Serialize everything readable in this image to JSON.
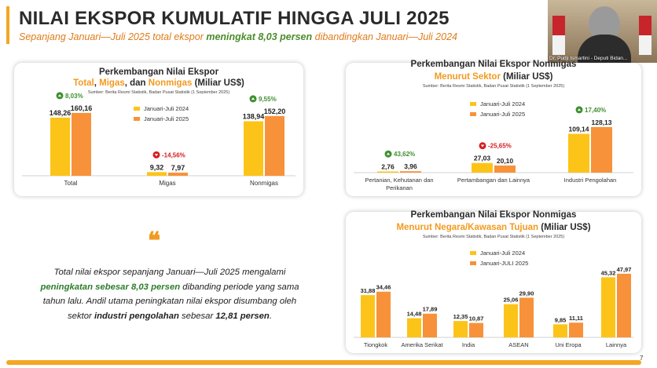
{
  "header": {
    "title": "NILAI EKSPOR KUMULATIF HINGGA JULI 2025",
    "subtitle_pre": "Sepanjang Januari—Juli 2025 total ekspor ",
    "subtitle_bold": "meningkat 8,03 persen",
    "subtitle_post": " dibandingkan Januari—Juli 2024"
  },
  "video": {
    "name": "Dr. Pudji Ismartini - Deputi Bidan..."
  },
  "colors": {
    "accent": "#f5a623",
    "bar2024": "#fcc419",
    "bar2025": "#f7923a",
    "up": "#3f8f2f",
    "down": "#d62020"
  },
  "panel1": {
    "title": "Perkembangan Nilai Ekspor",
    "sub_a": "Total",
    "sub_sep1": ", ",
    "sub_b": "Migas",
    "sub_sep2": ", dan ",
    "sub_c": "Nonmigas",
    "sub_unit": " (Miliar US$)",
    "source": "Sumber: Berita Resmi Statistik, Badan Pusat Statistik (1 September 2025)",
    "legend": [
      "Januari-Juli 2024",
      "Januari-Juli 2025"
    ]
  },
  "panel2": {
    "title": "Perkembangan Nilai Ekspor Nonmigas",
    "sub_a": "Menurut Sektor",
    "sub_unit": " (Miliar US$)",
    "source": "Sumber: Berita Resmi Statistik, Badan Pusat Statistik (1 September 2025)",
    "legend": [
      "Januari-Juli 2024",
      "Januari-Juli 2025"
    ]
  },
  "panel3": {
    "title": "Perkembangan Nilai Ekspor Nonmigas",
    "sub_a": "Menurut Negara/Kawasan Tujuan",
    "sub_unit": " (Miliar US$)",
    "source": "Sumber: Berita Resmi Statistik, Badan Pusat Statistik (1 September 2025)",
    "legend": [
      "Januari-Juli 2024",
      "Januari-JULI 2025"
    ]
  },
  "quote": {
    "mark": "❝",
    "t1": "Total nilai ekspor sepanjang Januari—Juli 2025 mengalami ",
    "t2": "peningkatan sebesar 8,03 persen",
    "t3": " dibanding periode yang sama tahun lalu. Andil utama peningkatan nilai ekspor disumbang oleh sektor ",
    "t4": "industri pengolahan",
    "t5": " sebesar ",
    "t6": "12,81 persen",
    "t7": "."
  },
  "page_number": "7",
  "chart_data": [
    {
      "type": "bar",
      "title": "Perkembangan Nilai Ekspor Total, Migas, dan Nonmigas (Miliar US$)",
      "categories": [
        "Total",
        "Migas",
        "Nonmigas"
      ],
      "series": [
        {
          "name": "Januari-Juli 2024",
          "values": [
            148.26,
            9.32,
            138.94
          ],
          "labels": [
            "148,26",
            "9,32",
            "138,94"
          ]
        },
        {
          "name": "Januari-Juli 2025",
          "values": [
            160.16,
            7.97,
            152.2
          ],
          "labels": [
            "160,16",
            "7,97",
            "152,20"
          ]
        }
      ],
      "changes": [
        {
          "text": "8,03%",
          "dir": "up"
        },
        {
          "text": "-14,56%",
          "dir": "down"
        },
        {
          "text": "9,55%",
          "dir": "up"
        }
      ],
      "ylim": [
        0,
        200
      ]
    },
    {
      "type": "bar",
      "title": "Perkembangan Nilai Ekspor Nonmigas Menurut Sektor (Miliar US$)",
      "categories": [
        "Pertanian, Kehutanan dan Perikanan",
        "Pertambangan dan Lainnya",
        "Industri Pengolahan"
      ],
      "category_lines": [
        [
          "Pertanian, Kehutanan dan",
          "Perikanan"
        ],
        [
          "Pertambangan dan Lainnya"
        ],
        [
          "Industri Pengolahan"
        ]
      ],
      "series": [
        {
          "name": "Januari-Juli 2024",
          "values": [
            2.76,
            27.03,
            109.14
          ],
          "labels": [
            "2,76",
            "27,03",
            "109,14"
          ]
        },
        {
          "name": "Januari-Juli 2025",
          "values": [
            3.96,
            20.1,
            128.13
          ],
          "labels": [
            "3,96",
            "20,10",
            "128,13"
          ]
        }
      ],
      "changes": [
        {
          "text": "43,62%",
          "dir": "up"
        },
        {
          "text": "-25,65%",
          "dir": "down"
        },
        {
          "text": "17,40%",
          "dir": "up"
        }
      ],
      "ylim": [
        0,
        150
      ]
    },
    {
      "type": "bar",
      "title": "Perkembangan Nilai Ekspor Nonmigas Menurut Negara/Kawasan Tujuan (Miliar US$)",
      "categories": [
        "Tiongkok",
        "Amerika Serikat",
        "India",
        "ASEAN",
        "Uni Eropa",
        "Lainnya"
      ],
      "series": [
        {
          "name": "Januari-Juli 2024",
          "values": [
            31.88,
            14.48,
            12.35,
            25.06,
            9.85,
            45.32
          ],
          "labels": [
            "31,88",
            "14,48",
            "12,35",
            "25,06",
            "9,85",
            "45,32"
          ]
        },
        {
          "name": "Januari-JULI 2025",
          "values": [
            34.46,
            17.89,
            10.87,
            29.9,
            11.11,
            47.97
          ],
          "labels": [
            "34,46",
            "17,89",
            "10,87",
            "29,90",
            "11,11",
            "47,97"
          ]
        }
      ],
      "ylim": [
        0,
        55
      ]
    }
  ]
}
